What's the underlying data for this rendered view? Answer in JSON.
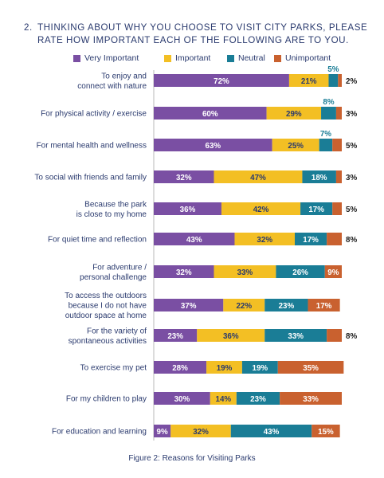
{
  "question": {
    "number": "2.",
    "text": "THINKING ABOUT WHY YOU CHOOSE TO VISIT CITY PARKS, PLEASE RATE HOW IMPORTANT EACH OF THE FOLLOWING ARE TO YOU."
  },
  "caption": "Figure 2: Reasons for Visiting Parks",
  "colors": {
    "text": "#2a3a6e",
    "very_important": "#7a4fa3",
    "important": "#f3bf24",
    "neutral": "#1a7d96",
    "unimportant": "#c9612f"
  },
  "chart_data": {
    "type": "bar",
    "orientation": "horizontal",
    "stacked": true,
    "percent_scale": [
      0,
      100
    ],
    "legend_position": "top",
    "grid": false,
    "categories": [
      [
        "To enjoy and",
        "connect with nature"
      ],
      [
        "For physical activity / exercise"
      ],
      [
        "For mental health and wellness"
      ],
      [
        "To social with friends and family"
      ],
      [
        "Because the park",
        "is close to my home"
      ],
      [
        "For quiet time and reflection"
      ],
      [
        "For adventure /",
        "personal challenge"
      ],
      [
        "To access the outdoors",
        "because I do not have",
        "outdoor space at home"
      ],
      [
        "For the variety of",
        "spontaneous activities"
      ],
      [
        "To exercise my pet"
      ],
      [
        "For my children to play"
      ],
      [
        "For education and learning"
      ]
    ],
    "series": [
      {
        "name": "Very Important",
        "color": "#7a4fa3",
        "values": [
          72,
          60,
          63,
          32,
          36,
          43,
          32,
          37,
          23,
          28,
          30,
          9
        ]
      },
      {
        "name": "Important",
        "color": "#f3bf24",
        "values": [
          21,
          29,
          25,
          47,
          42,
          32,
          33,
          22,
          36,
          19,
          14,
          32
        ]
      },
      {
        "name": "Neutral",
        "color": "#1a7d96",
        "values": [
          5,
          8,
          7,
          18,
          17,
          17,
          26,
          23,
          33,
          19,
          23,
          43
        ]
      },
      {
        "name": "Unimportant",
        "color": "#c9612f",
        "values": [
          2,
          3,
          5,
          3,
          5,
          8,
          9,
          17,
          8,
          35,
          33,
          15
        ]
      }
    ],
    "data_labels": [
      [
        "72%",
        "21%",
        "5%",
        "2%"
      ],
      [
        "60%",
        "29%",
        "8%",
        "3%"
      ],
      [
        "63%",
        "25%",
        "7%",
        "5%"
      ],
      [
        "32%",
        "47%",
        "18%",
        "3%"
      ],
      [
        "36%",
        "42%",
        "17%",
        "5%"
      ],
      [
        "43%",
        "32%",
        "17%",
        "8%"
      ],
      [
        "32%",
        "33%",
        "26%",
        "9%"
      ],
      [
        "37%",
        "22%",
        "23%",
        "17%"
      ],
      [
        "23%",
        "36%",
        "33%",
        "8%"
      ],
      [
        "28%",
        "19%",
        "19%",
        "35%"
      ],
      [
        "30%",
        "14%",
        "23%",
        "33%"
      ],
      [
        "9%",
        "32%",
        "43%",
        "15%"
      ]
    ]
  }
}
